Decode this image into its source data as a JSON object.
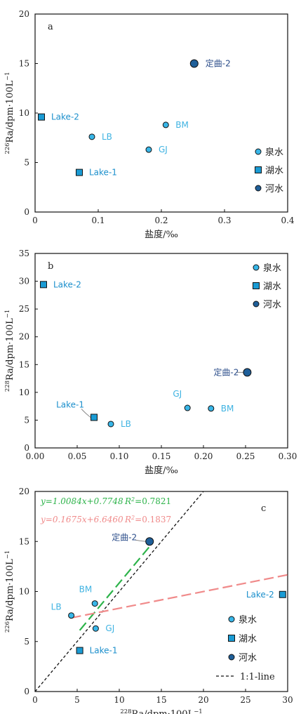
{
  "colors": {
    "spring": "#38b6e8",
    "lake": "#1a9bd4",
    "river": "#1f5f99",
    "label_spring": "#3fb3e2",
    "label_lake": "#1b8fcc",
    "label_river": "#2b4d8a",
    "fit_green": "#2db34a",
    "fit_red": "#f08a8a"
  },
  "legend": {
    "spring": "泉水",
    "lake": "湖水",
    "river": "河水",
    "line11": "1:1-line"
  },
  "chart_data": [
    {
      "panel": "a",
      "type": "scatter",
      "xlabel": "盐度/‰",
      "ylabel": "226Ra/dpm·100L−1",
      "xlim": [
        0,
        0.4
      ],
      "ylim": [
        0,
        20
      ],
      "xticks": [
        "0",
        "0.1",
        "0.2",
        "0.3",
        "0.4"
      ],
      "yticks": [
        "0",
        "5",
        "10",
        "15",
        "20"
      ],
      "points": [
        {
          "label": "Lake-2",
          "group": "lake",
          "x": 0.01,
          "y": 9.6
        },
        {
          "label": "Lake-1",
          "group": "lake",
          "x": 0.07,
          "y": 4.0
        },
        {
          "label": "LB",
          "group": "spring",
          "x": 0.09,
          "y": 7.6
        },
        {
          "label": "GJ",
          "group": "spring",
          "x": 0.18,
          "y": 6.3
        },
        {
          "label": "BM",
          "group": "spring",
          "x": 0.207,
          "y": 8.8
        },
        {
          "label": "定曲-2",
          "group": "river",
          "x": 0.252,
          "y": 15.0
        }
      ]
    },
    {
      "panel": "b",
      "type": "scatter",
      "xlabel": "盐度/‰",
      "ylabel": "228Ra/dpm·100L−1",
      "xlim": [
        0,
        0.3
      ],
      "ylim": [
        0,
        35
      ],
      "xticks": [
        "0.00",
        "0.05",
        "0.10",
        "0.15",
        "0.20",
        "0.25",
        "0.30"
      ],
      "yticks": [
        "0",
        "5",
        "10",
        "15",
        "20",
        "25",
        "30",
        "35"
      ],
      "points": [
        {
          "label": "Lake-2",
          "group": "lake",
          "x": 0.01,
          "y": 29.4
        },
        {
          "label": "Lake-1",
          "group": "lake",
          "x": 0.07,
          "y": 5.5
        },
        {
          "label": "LB",
          "group": "spring",
          "x": 0.09,
          "y": 4.3
        },
        {
          "label": "GJ",
          "group": "spring",
          "x": 0.181,
          "y": 7.2
        },
        {
          "label": "BM",
          "group": "spring",
          "x": 0.209,
          "y": 7.1
        },
        {
          "label": "定曲-2",
          "group": "river",
          "x": 0.252,
          "y": 13.6
        }
      ]
    },
    {
      "panel": "c",
      "type": "scatter",
      "xlabel": "228Ra/dpm·100L−1",
      "ylabel": "226Ra/dpm·100L−1",
      "xlim": [
        0,
        30
      ],
      "ylim": [
        0,
        20
      ],
      "xticks": [
        "0",
        "5",
        "10",
        "15",
        "20",
        "25",
        "30"
      ],
      "yticks": [
        "0",
        "5",
        "10",
        "15",
        "20"
      ],
      "points": [
        {
          "label": "LB",
          "group": "spring",
          "x": 4.3,
          "y": 7.6
        },
        {
          "label": "BM",
          "group": "spring",
          "x": 7.1,
          "y": 8.8
        },
        {
          "label": "GJ",
          "group": "spring",
          "x": 7.2,
          "y": 6.3
        },
        {
          "label": "Lake-1",
          "group": "lake",
          "x": 5.3,
          "y": 4.1
        },
        {
          "label": "Lake-2",
          "group": "lake",
          "x": 29.4,
          "y": 9.7
        },
        {
          "label": "定曲-2",
          "group": "river",
          "x": 13.6,
          "y": 15.0
        }
      ],
      "fits": [
        {
          "equation": "y=1.0084x+0.7748",
          "r2": "R2=0.7821",
          "slope": 1.0084,
          "intercept": 0.7748,
          "x_range": [
            5.3,
            13.6
          ],
          "color": "green"
        },
        {
          "equation": "y=0.1675x+6.6460",
          "r2": "R2=0.1837",
          "slope": 0.1675,
          "intercept": 6.646,
          "x_range": [
            4.3,
            30
          ],
          "color": "red"
        }
      ],
      "reference_line": {
        "label": "1:1-line",
        "slope": 1,
        "intercept": 0
      }
    }
  ]
}
